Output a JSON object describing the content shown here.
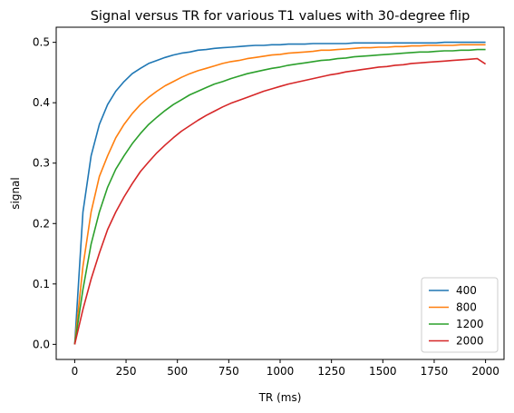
{
  "chart_data": {
    "type": "line",
    "title": "Signal versus TR for various T1 values with 30-degree flip",
    "xlabel": "TR (ms)",
    "ylabel": "signal",
    "xlim": [
      -90,
      2090
    ],
    "ylim": [
      -0.025,
      0.525
    ],
    "xticks": [
      0,
      250,
      500,
      750,
      1000,
      1250,
      1500,
      1750,
      2000
    ],
    "yticks": [
      0.0,
      0.1,
      0.2,
      0.3,
      0.4,
      0.5
    ],
    "xtick_labels": [
      "0",
      "250",
      "500",
      "750",
      "1000",
      "1250",
      "1500",
      "1750",
      "2000"
    ],
    "ytick_labels": [
      "0.0",
      "0.1",
      "0.2",
      "0.3",
      "0.4",
      "0.5"
    ],
    "grid": false,
    "legend": "lower right",
    "x": [
      0,
      40,
      80,
      120,
      160,
      200,
      240,
      280,
      320,
      360,
      400,
      440,
      480,
      520,
      560,
      600,
      640,
      680,
      720,
      760,
      800,
      840,
      880,
      920,
      960,
      1000,
      1040,
      1080,
      1120,
      1160,
      1200,
      1240,
      1280,
      1320,
      1360,
      1400,
      1440,
      1480,
      1520,
      1560,
      1600,
      1640,
      1680,
      1720,
      1760,
      1800,
      1840,
      1880,
      1920,
      1960,
      2000
    ],
    "series": [
      {
        "name": "400",
        "color": "#1f77b4",
        "values": [
          0.0,
          0.219,
          0.312,
          0.364,
          0.397,
          0.419,
          0.435,
          0.448,
          0.457,
          0.465,
          0.47,
          0.475,
          0.479,
          0.482,
          0.484,
          0.487,
          0.488,
          0.49,
          0.491,
          0.492,
          0.493,
          0.494,
          0.495,
          0.495,
          0.496,
          0.496,
          0.497,
          0.497,
          0.497,
          0.498,
          0.498,
          0.498,
          0.498,
          0.498,
          0.499,
          0.499,
          0.499,
          0.499,
          0.499,
          0.499,
          0.499,
          0.499,
          0.499,
          0.499,
          0.499,
          0.5,
          0.5,
          0.5,
          0.5,
          0.5,
          0.5
        ]
      },
      {
        "name": "800",
        "color": "#ff7f0e",
        "values": [
          0.0,
          0.129,
          0.219,
          0.278,
          0.312,
          0.342,
          0.364,
          0.382,
          0.397,
          0.409,
          0.419,
          0.428,
          0.435,
          0.442,
          0.448,
          0.453,
          0.457,
          0.461,
          0.465,
          0.468,
          0.47,
          0.473,
          0.475,
          0.477,
          0.479,
          0.48,
          0.482,
          0.483,
          0.484,
          0.485,
          0.487,
          0.487,
          0.488,
          0.489,
          0.49,
          0.491,
          0.491,
          0.492,
          0.492,
          0.493,
          0.493,
          0.494,
          0.494,
          0.495,
          0.495,
          0.495,
          0.495,
          0.496,
          0.496,
          0.496,
          0.496
        ]
      },
      {
        "name": "1200",
        "color": "#2ca02c",
        "values": [
          0.0,
          0.091,
          0.166,
          0.219,
          0.26,
          0.29,
          0.312,
          0.332,
          0.349,
          0.364,
          0.376,
          0.387,
          0.397,
          0.405,
          0.413,
          0.419,
          0.425,
          0.431,
          0.435,
          0.44,
          0.444,
          0.448,
          0.451,
          0.454,
          0.457,
          0.459,
          0.462,
          0.464,
          0.466,
          0.468,
          0.47,
          0.471,
          0.473,
          0.474,
          0.476,
          0.477,
          0.478,
          0.479,
          0.48,
          0.481,
          0.482,
          0.483,
          0.484,
          0.484,
          0.485,
          0.486,
          0.486,
          0.487,
          0.487,
          0.488,
          0.488
        ]
      },
      {
        "name": "2000",
        "color": "#d62728",
        "values": [
          0.0,
          0.058,
          0.108,
          0.151,
          0.19,
          0.219,
          0.244,
          0.266,
          0.286,
          0.302,
          0.317,
          0.33,
          0.342,
          0.353,
          0.362,
          0.371,
          0.379,
          0.386,
          0.393,
          0.399,
          0.404,
          0.409,
          0.414,
          0.419,
          0.423,
          0.427,
          0.431,
          0.434,
          0.437,
          0.44,
          0.443,
          0.446,
          0.448,
          0.451,
          0.453,
          0.455,
          0.457,
          0.459,
          0.46,
          0.462,
          0.463,
          0.465,
          0.466,
          0.467,
          0.468,
          0.469,
          0.47,
          0.471,
          0.472,
          0.473,
          0.464
        ]
      }
    ]
  }
}
